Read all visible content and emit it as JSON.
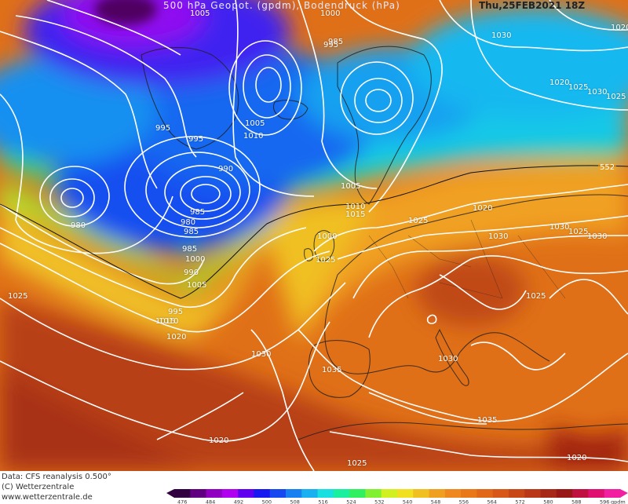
{
  "header": {
    "title": "500 hPa Geopot. (gpdm), Bodendruck (hPa)",
    "datetime": "Thu,25FEB2021 18Z"
  },
  "footer": {
    "data_source": "Data: CFS reanalysis 0.500°",
    "copyright": "(C) Wetterzentrale",
    "website": "www.wetterzentrale.de"
  },
  "colors": {
    "ocean_low": "#1840e8",
    "ocean_mid": "#18d0e0",
    "ridge_yellow": "#f0e020",
    "warm_orange": "#e87818",
    "hot_red": "#b83818",
    "polar_purple": "#9000f0",
    "isobar": "#ffffff",
    "coast": "#202020"
  },
  "isobar_labels": [
    "995",
    "1005",
    "1000",
    "995",
    "1005",
    "1010",
    "995",
    "990",
    "985",
    "985",
    "980",
    "980",
    "985",
    "1000",
    "990",
    "995",
    "1005",
    "1000",
    "1005",
    "1010",
    "1015",
    "1015",
    "1020",
    "1025",
    "1020",
    "1025",
    "1030",
    "1025",
    "1030",
    "1035",
    "1025",
    "1030",
    "1035",
    "1025",
    "1020",
    "1020",
    "1030",
    "1020",
    "1025",
    "1030",
    "1025",
    "1030",
    "1025",
    "1030",
    "985",
    "1020",
    "1010"
  ],
  "geopotential_label": "552",
  "colorbar": {
    "ticks": [
      "476",
      "484",
      "492",
      "500",
      "508",
      "516",
      "524",
      "532",
      "540",
      "548",
      "556",
      "564",
      "572",
      "580",
      "588",
      "596"
    ],
    "unit": "gpdm",
    "colors": [
      "#300040",
      "#600080",
      "#9000c0",
      "#b000f0",
      "#6000f0",
      "#1818f0",
      "#1848f0",
      "#1880f0",
      "#18b0f0",
      "#18e0e0",
      "#18f0a0",
      "#30f060",
      "#80f030",
      "#d0f020",
      "#f0e020",
      "#f0c020",
      "#f0a020",
      "#f08820",
      "#e87818",
      "#e06818",
      "#d85818",
      "#c84818",
      "#b83818",
      "#a82818",
      "#981818",
      "#c01040",
      "#e01070",
      "#f020a0"
    ]
  }
}
